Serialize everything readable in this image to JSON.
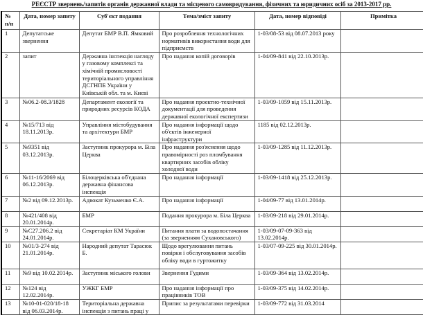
{
  "title": "РЕЄСТР звернень/запитів органів державної влади та місцевого самоврядування, фізичних та юридичних осіб за 2013-2017 рр.",
  "headers": [
    "№ п/п",
    "Дата, номер запиту",
    "Суб'єкт  подання",
    "Тема/зміст запиту",
    "Дата, номер відповіді",
    "Примітка"
  ],
  "rows": [
    [
      "1",
      "Депутатське звернення",
      "Депутат БМР В.П. Ямковий",
      "Про розроблення технологічних нормативів використання води для підприємств",
      "1-03/08-53 від 08.07.2013 року",
      ""
    ],
    [
      "2",
      "запит",
      "Державна інспекція нагляду у газовому комплексі та хімічній промисловості територіального управління ДСГНПБ України у Київській обл. та м. Києві",
      "Про надання копій договорів",
      "1-04/09-841 від 22.10.2013р.",
      ""
    ],
    [
      "3",
      "№06.2-08.3/1828",
      "Департамент екології та природних ресурсів КОДА",
      "Про надання проектно-технічної документації для проведення державної екологічної експертизи",
      "1-03/09-1059 від 15.11.2013р.",
      ""
    ],
    [
      "4",
      "№15/713 від 18.11.2013р.",
      "Управління містобудування та архітектури БМР",
      "Про надання інформації щодо об'єктів інженерної інфраструктури",
      "1185 від 02.12.2013р.",
      ""
    ],
    [
      "5",
      "№9351 від 03.12.2013р.",
      "Заступник прокурора м. Біла Церква",
      "Про надання роз'яснення щодо правомірності роз пломбування квартирних засобів обліку холодної води",
      "1-03/09-1285 від 11.12.2013р.",
      ""
    ],
    [
      "6",
      "№11-16/2069 від 06.12.2013р.",
      "Білоцерківська об'єднана державна фінансова інспекція",
      "Про надання інформації",
      "1-03/09-1418 від 25.12.2013р.",
      ""
    ],
    [
      "7",
      "№2 від 09.12.2013р.",
      "Адвокат Кузьменко Є.А.",
      "Про надання інформації",
      "1-04/09-77 від 13.01.2014р.",
      ""
    ],
    [
      "8",
      "№421/408 від 20.01.2014р.",
      "БМР",
      "Подання прокурора м. Біла Церква",
      "1-03/09-218 від 29.01.2014р.",
      ""
    ],
    [
      "9",
      "№С27.206.2 від 24.01.2014р.",
      "Секретаріат КМ України",
      "Питання плати за водопостачання (за зверненням Сухановського)",
      "1-03/09-07-09-363 від 13.02.2014р.",
      ""
    ],
    [
      "10",
      "№01/3-274 від 21.01.2014р.",
      "Народний депутат Тарасюк Б.",
      "Щодо врегулювання питань повірки і обслуговування засобів обліку води в гуртожитку",
      "1-03/07-09-225 від 30.01.2014р.",
      ""
    ],
    [
      "11",
      "№9 від 10.02.2014р.",
      "Заступник міського голови",
      "Звернення Гудими",
      "1-03/09-364 від 13.02.2014р.",
      ""
    ],
    [
      "12",
      "№124 від 12.02.2014р.",
      "УЖКГ БМР",
      "Про надання інформації про працівників ТОВ",
      "1-03/09-375 від 14.02.2014р.",
      ""
    ],
    [
      "13",
      "№10-01-020/18-18 від 06.03.2014р.",
      "Територіальна державна інспекція з питань праці у",
      "Припис за результатами перевірки",
      "1-03/09-772 від 31.03.2014",
      ""
    ]
  ]
}
